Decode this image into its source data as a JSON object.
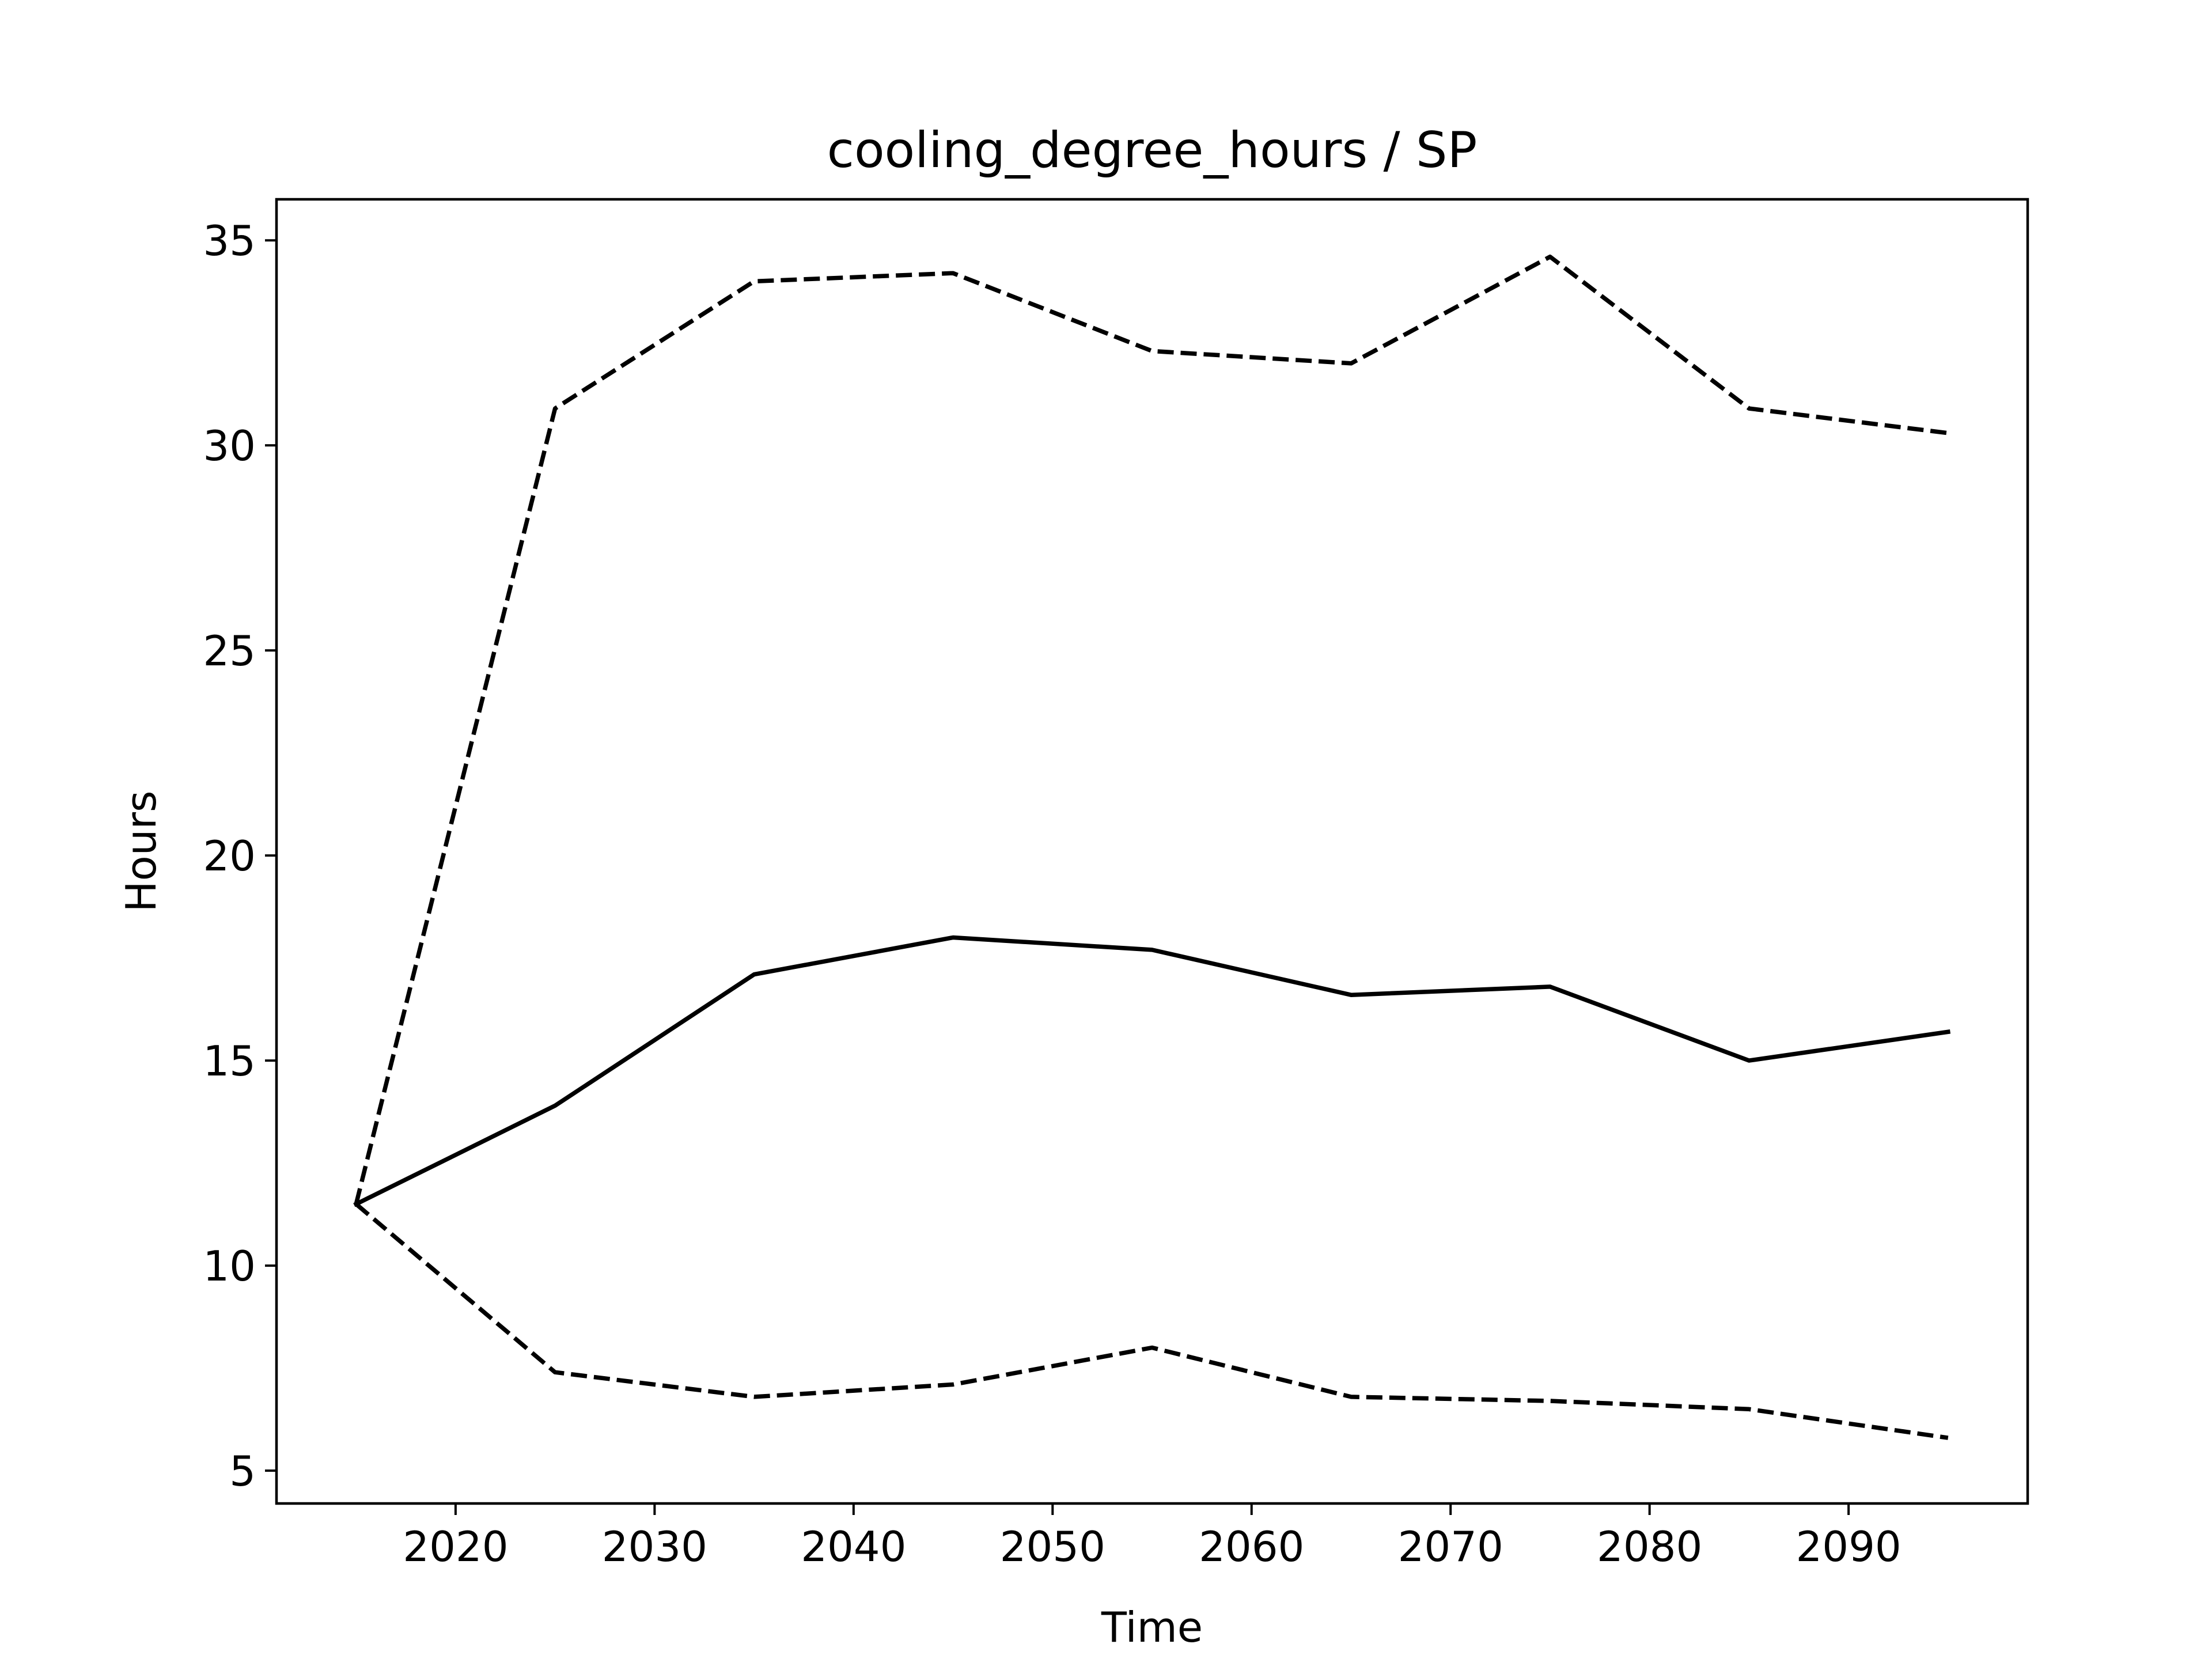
{
  "chart_data": {
    "type": "line",
    "title": "cooling_degree_hours / SP",
    "xlabel": "Time",
    "ylabel": "Hours",
    "xlim": [
      2011,
      2099
    ],
    "ylim": [
      4.2,
      36.0
    ],
    "x_ticks": [
      2020,
      2030,
      2040,
      2050,
      2060,
      2070,
      2080,
      2090
    ],
    "y_ticks": [
      5,
      10,
      15,
      20,
      25,
      30,
      35
    ],
    "x_tick_labels": [
      "2020",
      "2030",
      "2040",
      "2050",
      "2060",
      "2070",
      "2080",
      "2090"
    ],
    "y_tick_labels": [
      "5",
      "10",
      "15",
      "20",
      "25",
      "30",
      "35"
    ],
    "grid": false,
    "x": [
      2015,
      2025,
      2035,
      2045,
      2055,
      2065,
      2075,
      2085,
      2095
    ],
    "series": [
      {
        "style": "dashed",
        "color": "#000000",
        "values": [
          11.5,
          30.9,
          34.0,
          34.2,
          32.3,
          32.0,
          34.6,
          30.9,
          30.3
        ]
      },
      {
        "style": "solid",
        "color": "#000000",
        "values": [
          11.5,
          13.9,
          17.1,
          18.0,
          17.7,
          16.6,
          16.8,
          15.0,
          15.7
        ]
      },
      {
        "style": "dashed",
        "color": "#000000",
        "values": [
          11.5,
          7.4,
          6.8,
          7.1,
          8.0,
          6.8,
          6.7,
          6.5,
          5.8
        ]
      }
    ]
  }
}
